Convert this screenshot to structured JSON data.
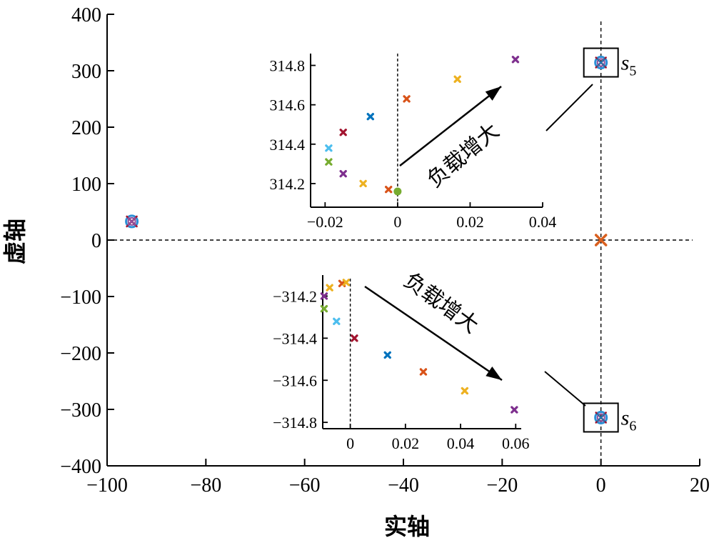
{
  "chart_data": [
    {
      "type": "scatter",
      "xlabel": "实轴",
      "ylabel": "虚轴",
      "xlim": [
        -100,
        20
      ],
      "ylim": [
        -400,
        400
      ],
      "x_ticks": [
        "−100",
        "−80",
        "−60",
        "−40",
        "−20",
        "0",
        "20"
      ],
      "x_tick_values": [
        -100,
        -80,
        -60,
        -40,
        -20,
        0,
        20
      ],
      "y_ticks": [
        "400",
        "300",
        "200",
        "100",
        "0",
        "−100",
        "−200",
        "−300",
        "−400"
      ],
      "y_tick_values": [
        400,
        300,
        200,
        100,
        0,
        -100,
        -200,
        -300,
        -400
      ],
      "reference_lines": {
        "x": 0,
        "y": 0,
        "style": "dashed"
      },
      "points": [
        {
          "x": -95.0,
          "y": 33,
          "marker": "circle-x",
          "color": "#8e4fa0"
        },
        {
          "x": 0.0,
          "y": 314.5,
          "marker": "circle-x",
          "color": "#1f77b4"
        },
        {
          "x": 0.0,
          "y": -314.5,
          "marker": "circle-x",
          "color": "#1f77b4"
        },
        {
          "x": 0.0,
          "y": 0,
          "marker": "x",
          "color": "#d95f1e"
        }
      ],
      "pole_labels": [
        {
          "name": "s",
          "sub": "5"
        },
        {
          "name": "s",
          "sub": "6"
        }
      ]
    },
    {
      "type": "scatter",
      "id": "inset_upper",
      "annotation": "负载增大",
      "xlim": [
        -0.024,
        0.04
      ],
      "ylim": [
        314.08,
        314.86
      ],
      "x_ticks": [
        "−0.02",
        "0",
        "0.02",
        "0.04"
      ],
      "x_tick_values": [
        -0.02,
        0,
        0.02,
        0.04
      ],
      "y_ticks": [
        "314.8",
        "314.6",
        "314.4",
        "314.2"
      ],
      "y_tick_values": [
        314.8,
        314.6,
        314.4,
        314.2
      ],
      "points": [
        {
          "x": -0.019,
          "y": 314.31,
          "color": "#77ac30"
        },
        {
          "x": -0.019,
          "y": 314.38,
          "color": "#4dbeee"
        },
        {
          "x": -0.015,
          "y": 314.25,
          "color": "#7e2f8e"
        },
        {
          "x": -0.015,
          "y": 314.46,
          "color": "#a2142f"
        },
        {
          "x": -0.0095,
          "y": 314.2,
          "color": "#edb120"
        },
        {
          "x": -0.0075,
          "y": 314.54,
          "color": "#0072bd"
        },
        {
          "x": -0.0025,
          "y": 314.17,
          "color": "#d95319"
        },
        {
          "x": 0.0,
          "y": 314.16,
          "color": "#77ac30"
        },
        {
          "x": 0.0025,
          "y": 314.63,
          "color": "#d95319"
        },
        {
          "x": 0.0165,
          "y": 314.73,
          "color": "#edb120"
        },
        {
          "x": 0.0325,
          "y": 314.83,
          "color": "#7e2f8e"
        }
      ]
    },
    {
      "type": "scatter",
      "id": "inset_lower",
      "annotation": "负载增大",
      "xlim": [
        -0.01,
        0.062
      ],
      "ylim": [
        -314.83,
        -314.1
      ],
      "x_ticks": [
        "0",
        "0.02",
        "0.04",
        "0.06"
      ],
      "x_tick_values": [
        0,
        0.02,
        0.04,
        0.06
      ],
      "y_ticks": [
        "−314.2",
        "−314.4",
        "−314.6",
        "−314.8"
      ],
      "y_tick_values": [
        -314.2,
        -314.4,
        -314.6,
        -314.8
      ],
      "points": [
        {
          "x": -0.003,
          "y": -314.14,
          "color": "#d95319"
        },
        {
          "x": -0.0015,
          "y": -314.135,
          "color": "#edb120"
        },
        {
          "x": -0.0075,
          "y": -314.16,
          "color": "#edb120"
        },
        {
          "x": -0.0095,
          "y": -314.2,
          "color": "#7e2f8e"
        },
        {
          "x": -0.0095,
          "y": -314.26,
          "color": "#77ac30"
        },
        {
          "x": -0.005,
          "y": -314.32,
          "color": "#4dbeee"
        },
        {
          "x": 0.0015,
          "y": -314.4,
          "color": "#a2142f"
        },
        {
          "x": 0.0135,
          "y": -314.48,
          "color": "#0072bd"
        },
        {
          "x": 0.0265,
          "y": -314.56,
          "color": "#d95319"
        },
        {
          "x": 0.0415,
          "y": -314.65,
          "color": "#edb120"
        },
        {
          "x": 0.0595,
          "y": -314.74,
          "color": "#7e2f8e"
        }
      ]
    }
  ]
}
